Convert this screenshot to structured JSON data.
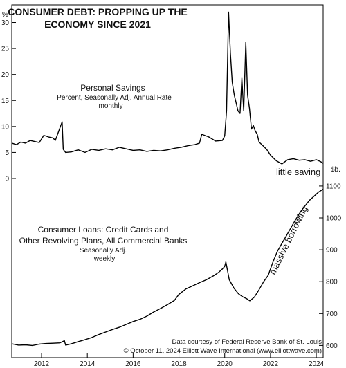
{
  "title_lines": [
    "CONSUMER DEBT: PROPPING UP THE",
    "ECONOMY SINCE 2021"
  ],
  "x_axis": {
    "ticks": [
      "2012",
      "2014",
      "2016",
      "2018",
      "2020",
      "2022",
      "2024"
    ],
    "range": [
      2010.7,
      2024.3
    ]
  },
  "credit_lines": [
    "Data courtesy of Federal Reserve Bank of St. Louis",
    "© October 11, 2024 Elliott Wave International (www.elliottwave.com)"
  ],
  "chart_data": [
    {
      "type": "line",
      "panel": "savings",
      "label_lines": [
        "Personal Savings",
        "Percent, Seasonally Adj. Annual Rate",
        "monthly"
      ],
      "unit": "%",
      "ticks": [
        0,
        5,
        10,
        15,
        20,
        25,
        30
      ],
      "ylim": [
        0,
        31
      ],
      "annotation": "little saving",
      "x": [
        2010.7,
        2010.9,
        2011.1,
        2011.3,
        2011.5,
        2011.7,
        2011.9,
        2012.1,
        2012.3,
        2012.5,
        2012.6,
        2012.9,
        2012.95,
        2013.05,
        2013.3,
        2013.6,
        2013.9,
        2014.2,
        2014.5,
        2014.8,
        2015.1,
        2015.4,
        2015.7,
        2016.0,
        2016.3,
        2016.6,
        2016.9,
        2017.2,
        2017.5,
        2017.8,
        2018.1,
        2018.4,
        2018.7,
        2018.9,
        2019.0,
        2019.3,
        2019.6,
        2019.9,
        2020.0,
        2020.08,
        2020.17,
        2020.25,
        2020.33,
        2020.42,
        2020.5,
        2020.58,
        2020.67,
        2020.75,
        2020.83,
        2020.92,
        2021.0,
        2021.08,
        2021.17,
        2021.25,
        2021.33,
        2021.42,
        2021.5,
        2021.67,
        2021.83,
        2022.0,
        2022.25,
        2022.5,
        2022.75,
        2023.0,
        2023.25,
        2023.5,
        2023.75,
        2024.0,
        2024.2,
        2024.3
      ],
      "values": [
        6.8,
        6.5,
        7.0,
        6.8,
        7.3,
        7.1,
        6.9,
        8.3,
        8.0,
        7.8,
        7.3,
        10.9,
        5.6,
        5.0,
        5.1,
        5.5,
        5.0,
        5.6,
        5.4,
        5.7,
        5.5,
        6.0,
        5.7,
        5.4,
        5.5,
        5.2,
        5.4,
        5.3,
        5.5,
        5.8,
        6.0,
        6.3,
        6.5,
        6.8,
        8.5,
        8.0,
        7.2,
        7.3,
        8.2,
        13.0,
        32.0,
        24.0,
        18.5,
        16.0,
        14.5,
        13.0,
        12.5,
        19.3,
        13.0,
        26.2,
        16.0,
        13.5,
        9.5,
        10.2,
        9.2,
        8.5,
        7.0,
        6.3,
        5.6,
        4.5,
        3.4,
        2.8,
        3.6,
        3.8,
        3.5,
        3.6,
        3.3,
        3.6,
        3.2,
        2.9
      ]
    },
    {
      "type": "line",
      "panel": "consumer_loans",
      "label_lines": [
        "Consumer Loans: Credit Cards and",
        "Other Revolving Plans, All Commercial Banks",
        "Seasonally Adj.",
        "weekly"
      ],
      "unit": "$b.",
      "ticks": [
        600,
        700,
        800,
        900,
        1000,
        1100
      ],
      "ylim": [
        590,
        1115
      ],
      "annotation": "massive borrowing",
      "x": [
        2010.7,
        2011.0,
        2011.3,
        2011.6,
        2011.9,
        2012.2,
        2012.5,
        2012.8,
        2013.0,
        2013.05,
        2013.3,
        2013.6,
        2013.9,
        2014.2,
        2014.5,
        2014.8,
        2015.1,
        2015.4,
        2015.7,
        2016.0,
        2016.3,
        2016.6,
        2016.9,
        2017.2,
        2017.5,
        2017.8,
        2018.0,
        2018.3,
        2018.6,
        2018.9,
        2019.2,
        2019.5,
        2019.75,
        2019.9,
        2020.0,
        2020.05,
        2020.2,
        2020.4,
        2020.6,
        2020.8,
        2020.95,
        2021.1,
        2021.3,
        2021.5,
        2021.7,
        2021.9,
        2022.1,
        2022.3,
        2022.5,
        2022.7,
        2022.9,
        2023.1,
        2023.3,
        2023.5,
        2023.7,
        2023.9,
        2024.1,
        2024.3
      ],
      "values": [
        605,
        601,
        602,
        600,
        604,
        606,
        607,
        608,
        615,
        601,
        605,
        612,
        618,
        625,
        634,
        642,
        650,
        657,
        666,
        675,
        682,
        692,
        705,
        716,
        728,
        741,
        760,
        777,
        787,
        797,
        806,
        818,
        830,
        840,
        848,
        862,
        806,
        780,
        762,
        752,
        747,
        740,
        752,
        775,
        800,
        820,
        860,
        895,
        920,
        945,
        970,
        995,
        1018,
        1037,
        1055,
        1068,
        1081,
        1090
      ]
    }
  ]
}
